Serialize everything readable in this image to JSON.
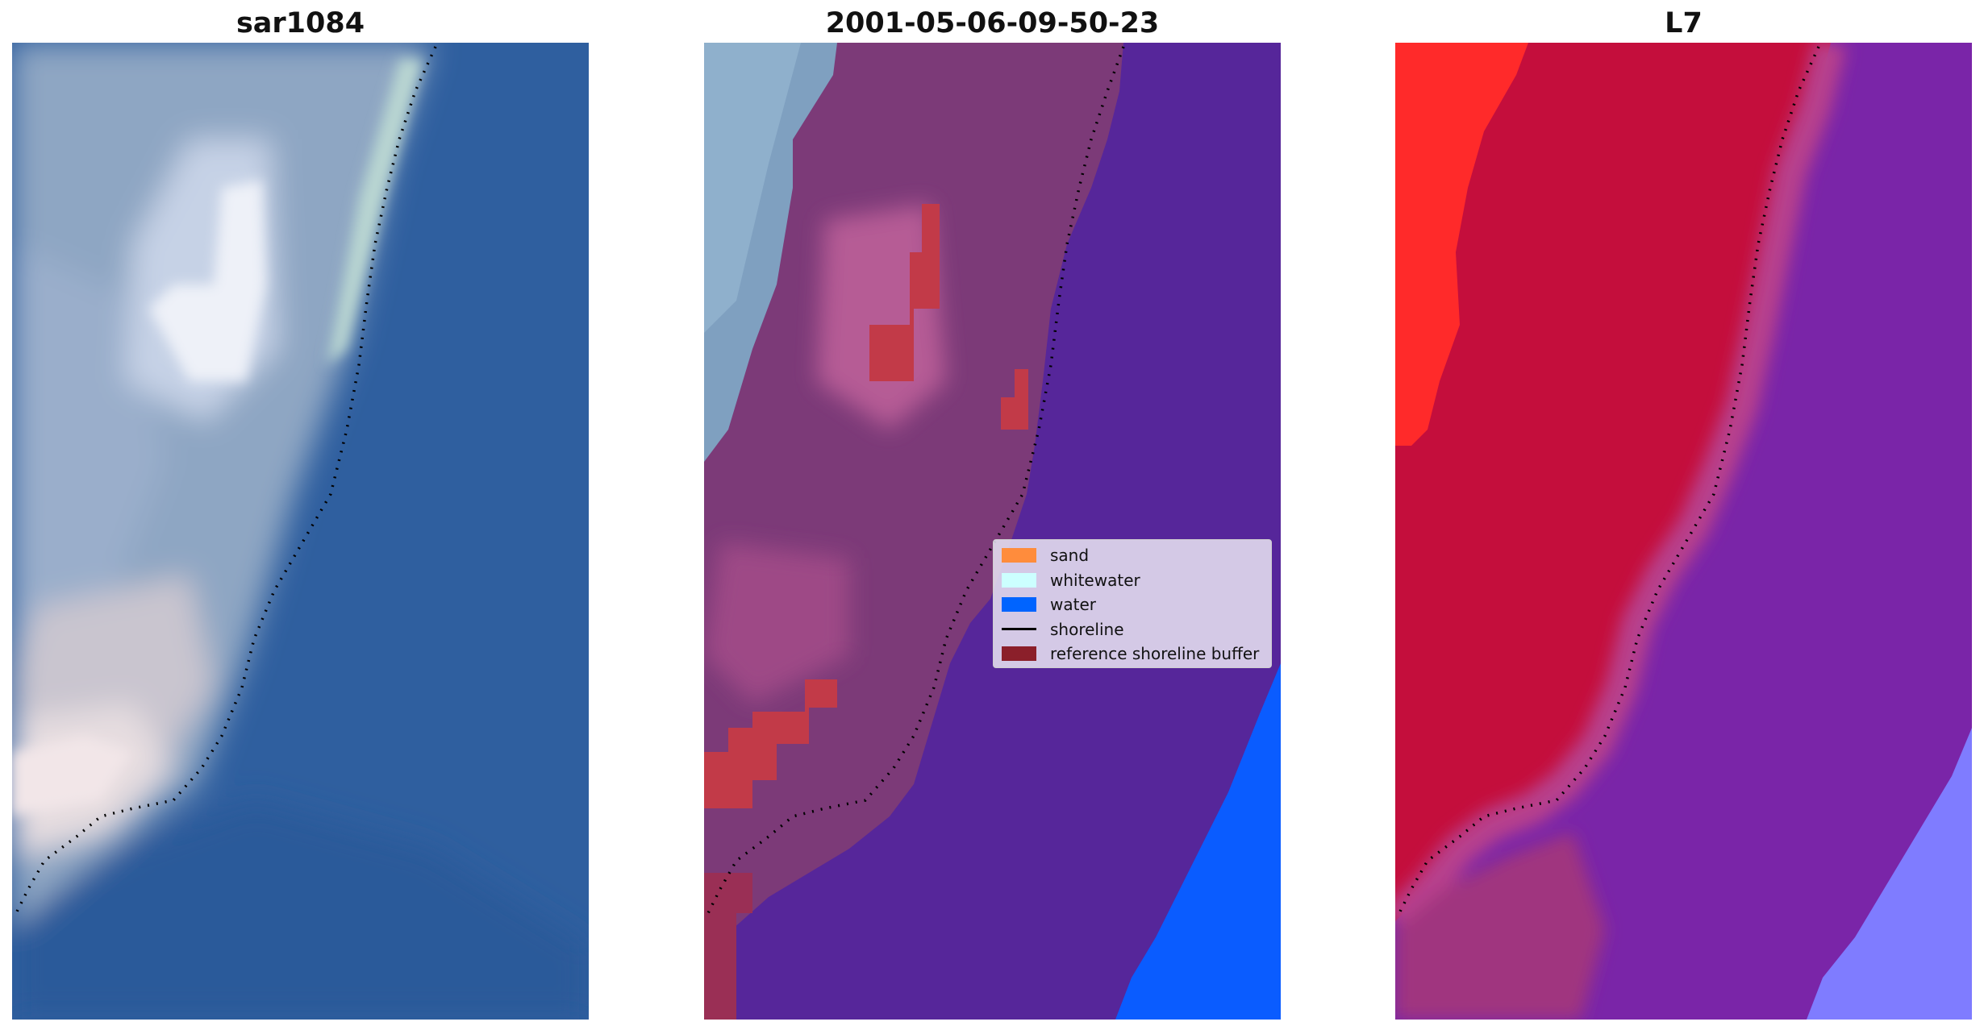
{
  "panels": [
    {
      "title": "sar1084"
    },
    {
      "title": "2001-05-06-09-50-23"
    },
    {
      "title": "L7"
    }
  ],
  "legend": {
    "items": [
      {
        "label": "sand",
        "color": "#ff8c3c",
        "kind": "patch"
      },
      {
        "label": "whitewater",
        "color": "#ccffff",
        "kind": "patch"
      },
      {
        "label": "water",
        "color": "#0064ff",
        "kind": "patch"
      },
      {
        "label": "shoreline",
        "color": "#000000",
        "kind": "line"
      },
      {
        "label": "reference shoreline buffer",
        "color": "#8b1f2a",
        "kind": "patch"
      }
    ]
  },
  "colors": {
    "rgb_water": "#2e5e9e",
    "rgb_land": "#8da6c4",
    "rgb_bright": "#eef0f6",
    "class_land": "#7b2d6a",
    "class_water_overlay": "#56269a",
    "class_water": "#0a5cff",
    "buffer": "#c23a48",
    "l7_red": "#ff2a2a",
    "l7_crimson": "#c40e3c",
    "l7_purple": "#7a25a8",
    "l7_lavender": "#7f7cff"
  }
}
